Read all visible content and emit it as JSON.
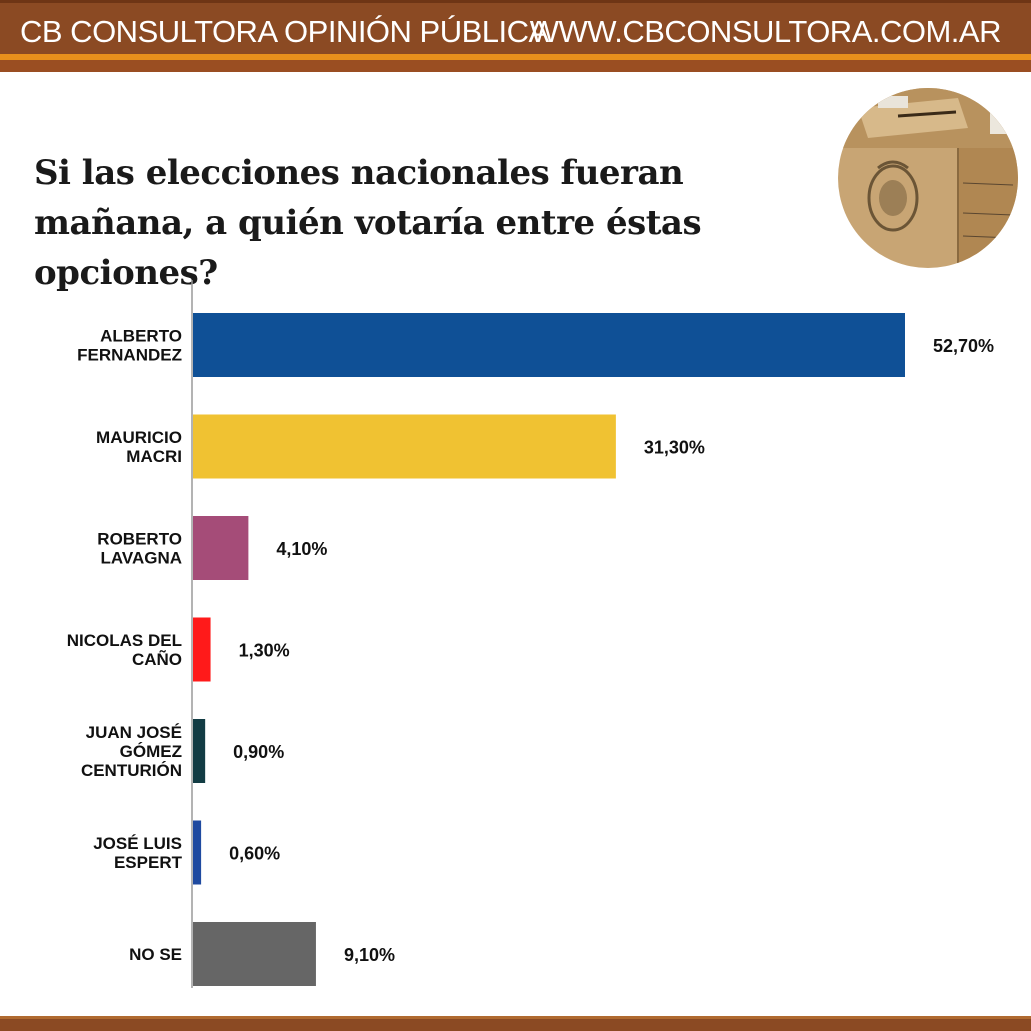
{
  "header": {
    "left_text": "CB CONSULTORA OPINIÓN PÚBLICA",
    "right_text": "WWW.CBCONSULTORA.COM.AR",
    "color": "#8b4a23",
    "accent": "#e8901c"
  },
  "image": {
    "subject": "ballot-box-photo"
  },
  "chart_data": {
    "type": "bar",
    "orientation": "horizontal",
    "title": "Si las elecciones nacionales fueran mañana, a quién votaría entre éstas opciones?",
    "categories": [
      [
        "ALBERTO",
        "FERNANDEZ"
      ],
      [
        "MAURICIO",
        "MACRI"
      ],
      [
        "ROBERTO",
        "LAVAGNA"
      ],
      [
        "NICOLAS DEL",
        "CAÑO"
      ],
      [
        "JUAN JOSÉ",
        "GÓMEZ",
        "CENTURIÓN"
      ],
      [
        "JOSÉ LUIS",
        "ESPERT"
      ],
      [
        "NO SE"
      ]
    ],
    "values": [
      52.7,
      31.3,
      4.1,
      1.3,
      0.9,
      0.6,
      9.1
    ],
    "value_labels": [
      "52,70%",
      "31,30%",
      "4,10%",
      "1,30%",
      "0,90%",
      "0,60%",
      "9,10%"
    ],
    "colors": [
      "#0f5096",
      "#f0c232",
      "#a54c78",
      "#ff1a1a",
      "#123c44",
      "#1f4aa0",
      "#666666"
    ],
    "xlim": [
      0,
      60
    ],
    "grid": false,
    "legend": "none"
  }
}
